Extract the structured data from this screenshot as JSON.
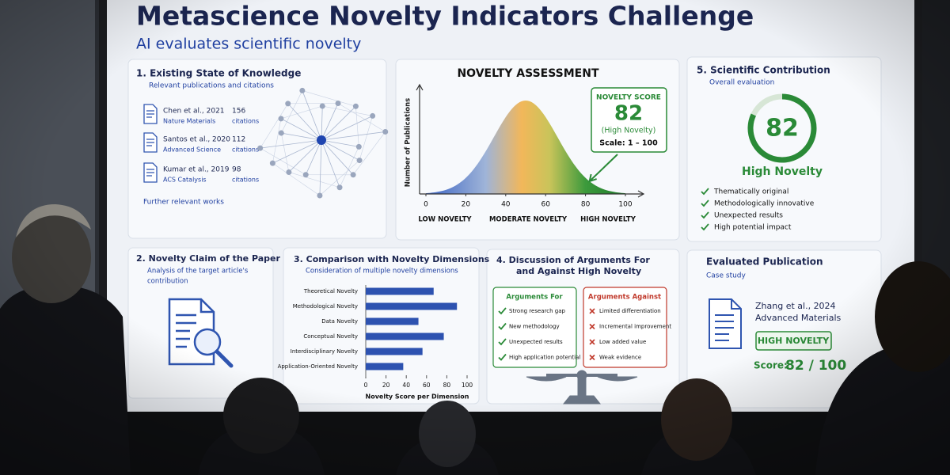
{
  "header": {
    "title": "Metascience Novelty Indicators Challenge",
    "subtitle": "AI evaluates scientific novelty"
  },
  "knowledge": {
    "heading": "1.  Existing State of Knowledge",
    "subheading": "Relevant publications and citations",
    "items": [
      {
        "author": "Chen et al., 2021",
        "journal": "Nature Materials",
        "citations": 156,
        "unit": "citations"
      },
      {
        "author": "Santos et al., 2020",
        "journal": "Advanced Science",
        "citations": 112,
        "unit": "citations"
      },
      {
        "author": "Kumar et al., 2019",
        "journal": "ACS Catalysis",
        "citations": 98,
        "unit": "citations"
      }
    ],
    "more": "Further relevant works"
  },
  "assessment": {
    "title": "NOVELTY ASSESSMENT",
    "y_label": "Number of Publications",
    "xlim": [
      0,
      100
    ],
    "xticks": [
      0,
      20,
      40,
      60,
      80,
      100
    ],
    "zones": [
      "LOW NOVELTY",
      "MODERATE NOVELTY",
      "HIGH NOVELTY"
    ],
    "score_box": {
      "label": "NOVELTY SCORE",
      "score": 82,
      "rating": "(High Novelty)",
      "scale": "Scale: 1 – 100"
    }
  },
  "contribution": {
    "heading": "5.  Scientific Contribution",
    "subheading": "Overall evaluation",
    "score": 82,
    "rating": "High Novelty",
    "points": [
      "Thematically original",
      "Methodologically innovative",
      "Unexpected results",
      "High potential impact"
    ]
  },
  "claim": {
    "heading": "2.  Novelty Claim of the Paper",
    "subheading": [
      "Analysis of the target article's",
      "contribution"
    ]
  },
  "comparison": {
    "heading": "3.  Comparison with Novelty Dimensions",
    "subheading": "Consideration of multiple novelty dimensions",
    "chart": {
      "type": "bar",
      "orientation": "horizontal",
      "categories": [
        "Theoretical Novelty",
        "Methodological Novelty",
        "Data Novelty",
        "Conceptual Novelty",
        "Interdisciplinary Novelty",
        "Application-Oriented Novelty"
      ],
      "values": [
        67,
        90,
        52,
        77,
        56,
        37
      ],
      "xlim": [
        0,
        100
      ],
      "xticks": [
        0,
        20,
        40,
        60,
        80,
        100
      ],
      "xlabel": "Novelty Score per Dimension",
      "color": "#2d52b0"
    }
  },
  "discussion": {
    "heading": [
      "4.  Discussion of Arguments For",
      "and Against High Novelty"
    ],
    "for": {
      "title": "Arguments For",
      "items": [
        "Strong research gap",
        "New methodology",
        "Unexpected results",
        "High application potential"
      ]
    },
    "against": {
      "title": "Arguments Against",
      "items": [
        "Limited differentiation",
        "Incremental improvement",
        "Low added value",
        "Weak evidence"
      ]
    }
  },
  "publication": {
    "heading": "Evaluated Publication",
    "subheading": "Case study",
    "author": "Zhang et al., 2024",
    "journal": "Advanced Materials",
    "badge": "HIGH NOVELTY",
    "score_label": "Score:",
    "score": "82 / 100"
  }
}
